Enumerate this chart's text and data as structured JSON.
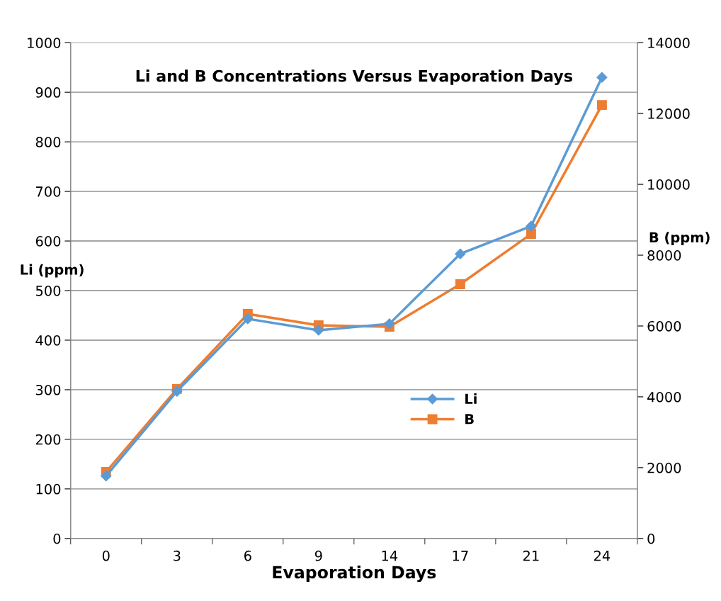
{
  "chart_data": {
    "type": "line",
    "title": "Li and B Concentrations Versus Evaporation Days",
    "xlabel": "Evaporation Days",
    "ylabel": "Li (ppm)",
    "y2label": "B (ppm)",
    "categories": [
      "0",
      "3",
      "6",
      "9",
      "14",
      "17",
      "21",
      "24"
    ],
    "series": [
      {
        "name": "Li",
        "color": "#5b9bd5",
        "marker": "diamond",
        "values": [
          126,
          297,
          443,
          420,
          433,
          574,
          630,
          930
        ]
      },
      {
        "name": "B",
        "color": "#ed7d31",
        "marker": "square",
        "axis": "y2",
        "values": [
          1880,
          4220,
          6340,
          6020,
          5980,
          7180,
          8600,
          12240
        ]
      }
    ],
    "ylim": [
      0,
      1000
    ],
    "yticks": [
      0,
      100,
      200,
      300,
      400,
      500,
      600,
      700,
      800,
      900,
      1000
    ],
    "y2lim": [
      0,
      14000
    ],
    "y2ticks": [
      0,
      2000,
      4000,
      6000,
      8000,
      10000,
      12000,
      14000
    ],
    "grid": "y",
    "legend": "bottom right",
    "line_style": "solid"
  }
}
